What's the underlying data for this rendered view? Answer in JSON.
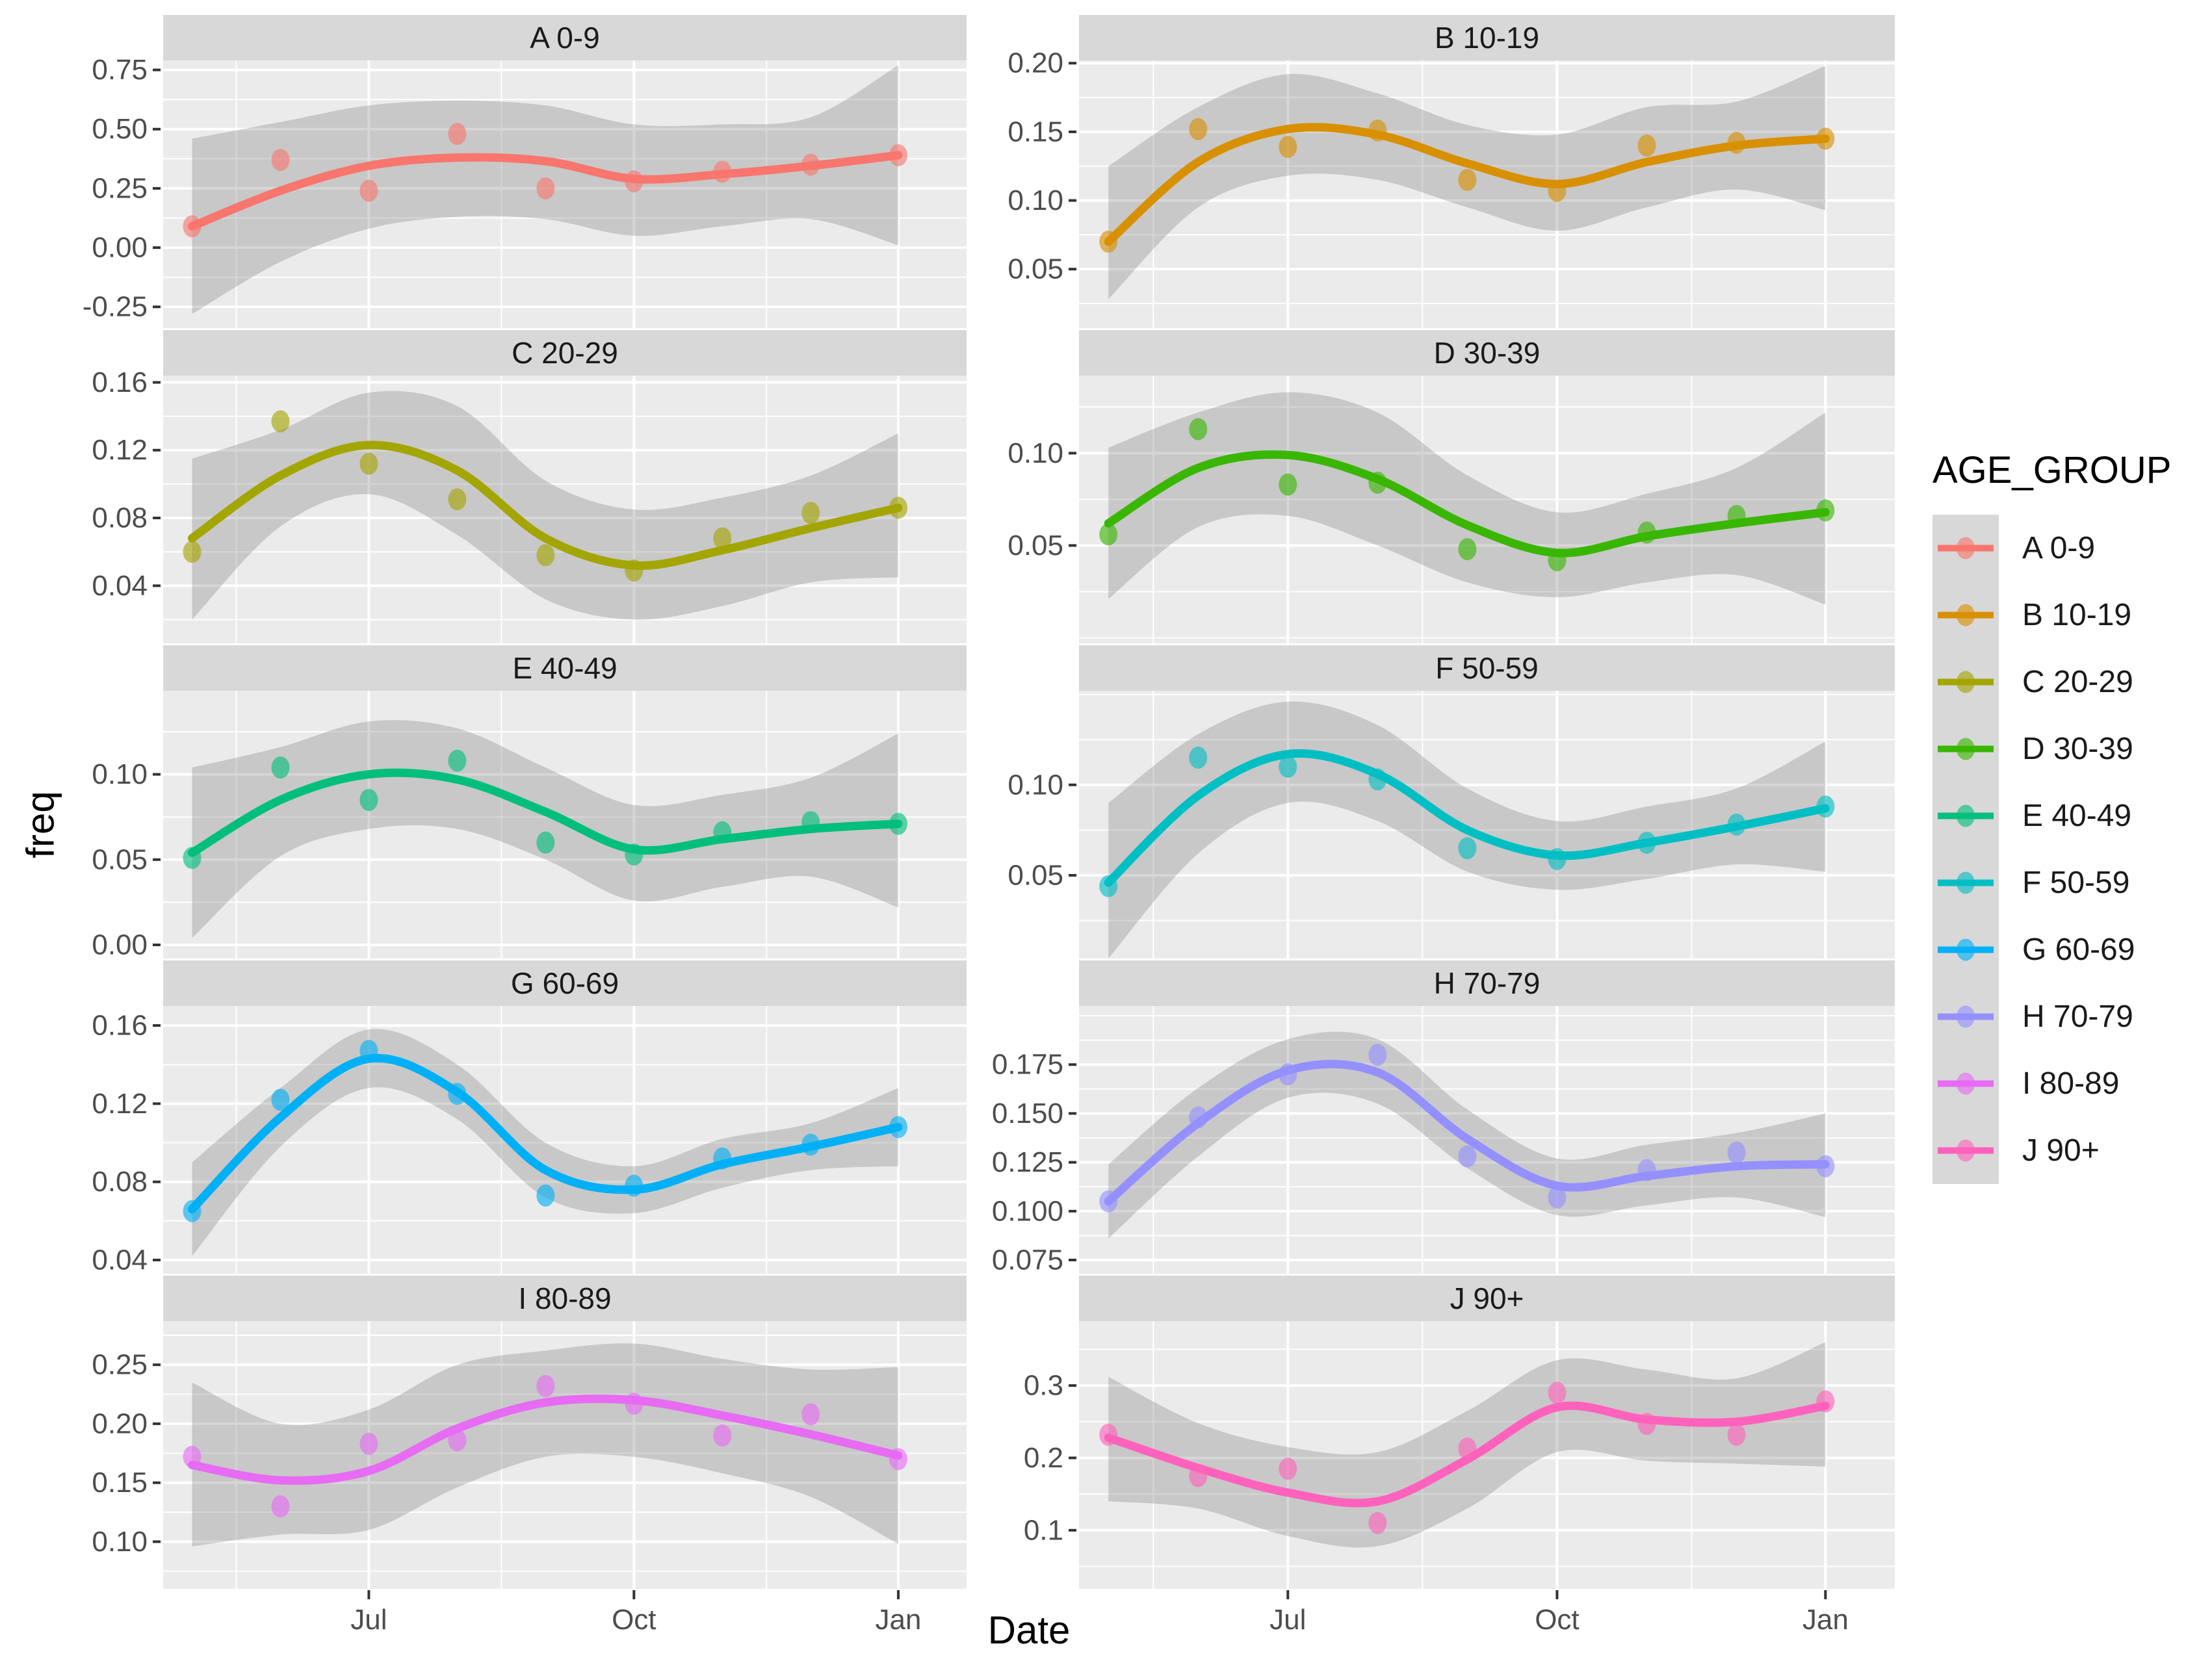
{
  "legend": {
    "title": "AGE_GROUP",
    "items": [
      {
        "label": "A 0-9",
        "color": "#F8766D"
      },
      {
        "label": "B 10-19",
        "color": "#D89000"
      },
      {
        "label": "C 20-29",
        "color": "#A3A500"
      },
      {
        "label": "D 30-39",
        "color": "#39B600"
      },
      {
        "label": "E 40-49",
        "color": "#00BF7D"
      },
      {
        "label": "F 50-59",
        "color": "#00BFC4"
      },
      {
        "label": "G 60-69",
        "color": "#00B0F6"
      },
      {
        "label": "H 70-79",
        "color": "#9590FF"
      },
      {
        "label": "I 80-89",
        "color": "#E76BF3"
      },
      {
        "label": "J 90+",
        "color": "#FF62BC"
      }
    ]
  },
  "style": {
    "panel_bg": "#EBEBEB",
    "strip_bg": "#D8D8D8",
    "grid_color": "#FFFFFF",
    "ribbon_color": "#7F7F7F",
    "ribbon_opacity": 0.32,
    "tick_text_color": "#4D4D4D",
    "strip_text_color": "#1A1A1A",
    "tick_mark_color": "#333333"
  },
  "chart_data": {
    "type": "line",
    "faceted": true,
    "facet_variable": "AGE_GROUP",
    "title": "",
    "xlabel": "Date",
    "ylabel": "freq",
    "x": [
      "May",
      "Jun",
      "Jul",
      "Aug",
      "Sep",
      "Oct",
      "Nov",
      "Dec",
      "Jan"
    ],
    "x_tick_labels": [
      "Jul",
      "Oct",
      "Jan"
    ],
    "grid": true,
    "legend_position": "right",
    "smoother": "loess with confidence ribbon",
    "panels": [
      {
        "title": "A 0-9",
        "color": "#F8766D",
        "y_domain": [
          -0.34,
          0.79
        ],
        "y_ticks": [
          {
            "v": 0.75,
            "label": "0.75"
          },
          {
            "v": 0.5,
            "label": "0.50"
          },
          {
            "v": 0.25,
            "label": "0.25"
          },
          {
            "v": 0.0,
            "label": "0.00"
          },
          {
            "v": -0.25,
            "label": "-0.25"
          }
        ],
        "points": [
          0.09,
          0.37,
          0.24,
          0.48,
          0.25,
          0.28,
          0.32,
          0.35,
          0.39
        ],
        "smooth_line": [
          0.09,
          0.24,
          0.345,
          0.38,
          0.365,
          0.29,
          0.31,
          0.345,
          0.39
        ],
        "ribbon_upper": [
          0.46,
          0.53,
          0.6,
          0.62,
          0.6,
          0.52,
          0.52,
          0.55,
          0.77
        ],
        "ribbon_lower": [
          -0.28,
          -0.06,
          0.08,
          0.13,
          0.12,
          0.05,
          0.09,
          0.12,
          0.01
        ]
      },
      {
        "title": "B 10-19",
        "color": "#D89000",
        "y_domain": [
          0.007,
          0.202
        ],
        "y_ticks": [
          {
            "v": 0.2,
            "label": "0.20"
          },
          {
            "v": 0.15,
            "label": "0.15"
          },
          {
            "v": 0.1,
            "label": "0.10"
          },
          {
            "v": 0.05,
            "label": "0.05"
          }
        ],
        "points": [
          0.07,
          0.152,
          0.139,
          0.151,
          0.115,
          0.107,
          0.14,
          0.142,
          0.145
        ],
        "smooth_line": [
          0.07,
          0.128,
          0.152,
          0.148,
          0.127,
          0.112,
          0.128,
          0.14,
          0.145
        ],
        "ribbon_upper": [
          0.125,
          0.168,
          0.192,
          0.178,
          0.155,
          0.148,
          0.168,
          0.172,
          0.198
        ],
        "ribbon_lower": [
          0.028,
          0.095,
          0.118,
          0.115,
          0.095,
          0.078,
          0.095,
          0.108,
          0.093
        ]
      },
      {
        "title": "C 20-29",
        "color": "#A3A500",
        "y_domain": [
          0.006,
          0.164
        ],
        "y_ticks": [
          {
            "v": 0.16,
            "label": "0.16"
          },
          {
            "v": 0.12,
            "label": "0.12"
          },
          {
            "v": 0.08,
            "label": "0.08"
          },
          {
            "v": 0.04,
            "label": "0.04"
          }
        ],
        "points": [
          0.06,
          0.137,
          0.112,
          0.091,
          0.058,
          0.049,
          0.068,
          0.083,
          0.086
        ],
        "smooth_line": [
          0.068,
          0.105,
          0.123,
          0.108,
          0.068,
          0.052,
          0.061,
          0.074,
          0.086
        ],
        "ribbon_upper": [
          0.115,
          0.132,
          0.154,
          0.146,
          0.102,
          0.085,
          0.092,
          0.105,
          0.13
        ],
        "ribbon_lower": [
          0.02,
          0.075,
          0.094,
          0.07,
          0.032,
          0.02,
          0.028,
          0.042,
          0.045
        ]
      },
      {
        "title": "D 30-39",
        "color": "#39B600",
        "y_domain": [
          -0.003,
          0.142
        ],
        "y_ticks": [
          {
            "v": 0.1,
            "label": "0.10"
          },
          {
            "v": 0.05,
            "label": "0.05"
          }
        ],
        "points": [
          0.056,
          0.113,
          0.083,
          0.084,
          0.048,
          0.042,
          0.057,
          0.066,
          0.069
        ],
        "smooth_line": [
          0.062,
          0.092,
          0.099,
          0.086,
          0.061,
          0.046,
          0.055,
          0.062,
          0.068
        ],
        "ribbon_upper": [
          0.103,
          0.122,
          0.133,
          0.122,
          0.088,
          0.068,
          0.078,
          0.092,
          0.122
        ],
        "ribbon_lower": [
          0.021,
          0.06,
          0.066,
          0.05,
          0.03,
          0.022,
          0.03,
          0.034,
          0.018
        ]
      },
      {
        "title": "E 40-49",
        "color": "#00BF7D",
        "y_domain": [
          -0.008,
          0.149
        ],
        "y_ticks": [
          {
            "v": 0.1,
            "label": "0.10"
          },
          {
            "v": 0.05,
            "label": "0.05"
          },
          {
            "v": 0.0,
            "label": "0.00"
          }
        ],
        "points": [
          0.051,
          0.104,
          0.085,
          0.108,
          0.06,
          0.053,
          0.066,
          0.072,
          0.071
        ],
        "smooth_line": [
          0.054,
          0.085,
          0.1,
          0.097,
          0.078,
          0.056,
          0.062,
          0.068,
          0.071
        ],
        "ribbon_upper": [
          0.104,
          0.116,
          0.131,
          0.127,
          0.104,
          0.082,
          0.088,
          0.098,
          0.124
        ],
        "ribbon_lower": [
          0.004,
          0.052,
          0.068,
          0.068,
          0.05,
          0.026,
          0.034,
          0.04,
          0.022
        ]
      },
      {
        "title": "F 50-59",
        "color": "#00BFC4",
        "y_domain": [
          0.004,
          0.152
        ],
        "y_ticks": [
          {
            "v": 0.1,
            "label": "0.10"
          },
          {
            "v": 0.05,
            "label": "0.05"
          }
        ],
        "points": [
          0.044,
          0.115,
          0.11,
          0.103,
          0.065,
          0.059,
          0.068,
          0.078,
          0.088
        ],
        "smooth_line": [
          0.046,
          0.094,
          0.117,
          0.106,
          0.075,
          0.061,
          0.068,
          0.077,
          0.087
        ],
        "ribbon_upper": [
          0.09,
          0.128,
          0.146,
          0.133,
          0.098,
          0.08,
          0.088,
          0.098,
          0.124
        ],
        "ribbon_lower": [
          0.004,
          0.062,
          0.09,
          0.08,
          0.052,
          0.042,
          0.048,
          0.056,
          0.052
        ]
      },
      {
        "title": "G 60-69",
        "color": "#00B0F6",
        "y_domain": [
          0.033,
          0.17
        ],
        "y_ticks": [
          {
            "v": 0.16,
            "label": "0.16"
          },
          {
            "v": 0.12,
            "label": "0.12"
          },
          {
            "v": 0.08,
            "label": "0.08"
          },
          {
            "v": 0.04,
            "label": "0.04"
          }
        ],
        "points": [
          0.065,
          0.122,
          0.147,
          0.125,
          0.073,
          0.078,
          0.092,
          0.099,
          0.108
        ],
        "smooth_line": [
          0.066,
          0.113,
          0.143,
          0.126,
          0.086,
          0.076,
          0.089,
          0.098,
          0.108
        ],
        "ribbon_upper": [
          0.09,
          0.128,
          0.158,
          0.14,
          0.1,
          0.088,
          0.102,
          0.11,
          0.128
        ],
        "ribbon_lower": [
          0.042,
          0.098,
          0.128,
          0.112,
          0.072,
          0.064,
          0.077,
          0.086,
          0.088
        ]
      },
      {
        "title": "H 70-79",
        "color": "#9590FF",
        "y_domain": [
          0.068,
          0.205
        ],
        "y_ticks": [
          {
            "v": 0.175,
            "label": "0.175"
          },
          {
            "v": 0.15,
            "label": "0.150"
          },
          {
            "v": 0.125,
            "label": "0.125"
          },
          {
            "v": 0.1,
            "label": "0.100"
          },
          {
            "v": 0.075,
            "label": "0.075"
          }
        ],
        "points": [
          0.105,
          0.148,
          0.17,
          0.18,
          0.128,
          0.107,
          0.121,
          0.13,
          0.123
        ],
        "smooth_line": [
          0.105,
          0.145,
          0.172,
          0.171,
          0.137,
          0.113,
          0.118,
          0.123,
          0.124
        ],
        "ribbon_upper": [
          0.124,
          0.163,
          0.188,
          0.188,
          0.152,
          0.127,
          0.134,
          0.14,
          0.15
        ],
        "ribbon_lower": [
          0.086,
          0.128,
          0.158,
          0.155,
          0.122,
          0.098,
          0.103,
          0.107,
          0.097
        ]
      },
      {
        "title": "I 80-89",
        "color": "#E76BF3",
        "y_domain": [
          0.06,
          0.287
        ],
        "y_ticks": [
          {
            "v": 0.25,
            "label": "0.25"
          },
          {
            "v": 0.2,
            "label": "0.20"
          },
          {
            "v": 0.15,
            "label": "0.15"
          },
          {
            "v": 0.1,
            "label": "0.10"
          }
        ],
        "points": [
          0.172,
          0.13,
          0.183,
          0.186,
          0.232,
          0.217,
          0.19,
          0.208,
          0.17
        ],
        "smooth_line": [
          0.165,
          0.152,
          0.16,
          0.196,
          0.218,
          0.22,
          0.207,
          0.191,
          0.173
        ],
        "ribbon_upper": [
          0.235,
          0.2,
          0.212,
          0.25,
          0.262,
          0.268,
          0.255,
          0.246,
          0.248
        ],
        "ribbon_lower": [
          0.096,
          0.106,
          0.11,
          0.146,
          0.172,
          0.172,
          0.158,
          0.138,
          0.098
        ]
      },
      {
        "title": "J 90+",
        "color": "#FF62BC",
        "y_domain": [
          0.019,
          0.389
        ],
        "y_ticks": [
          {
            "v": 0.3,
            "label": "0.3"
          },
          {
            "v": 0.2,
            "label": "0.2"
          },
          {
            "v": 0.1,
            "label": "0.1"
          }
        ],
        "points": [
          0.232,
          0.175,
          0.185,
          0.11,
          0.213,
          0.29,
          0.247,
          0.232,
          0.278
        ],
        "smooth_line": [
          0.228,
          0.186,
          0.152,
          0.14,
          0.198,
          0.27,
          0.253,
          0.25,
          0.272
        ],
        "ribbon_upper": [
          0.312,
          0.248,
          0.215,
          0.208,
          0.265,
          0.335,
          0.322,
          0.31,
          0.36
        ],
        "ribbon_lower": [
          0.14,
          0.13,
          0.092,
          0.078,
          0.13,
          0.208,
          0.196,
          0.192,
          0.188
        ]
      }
    ]
  }
}
